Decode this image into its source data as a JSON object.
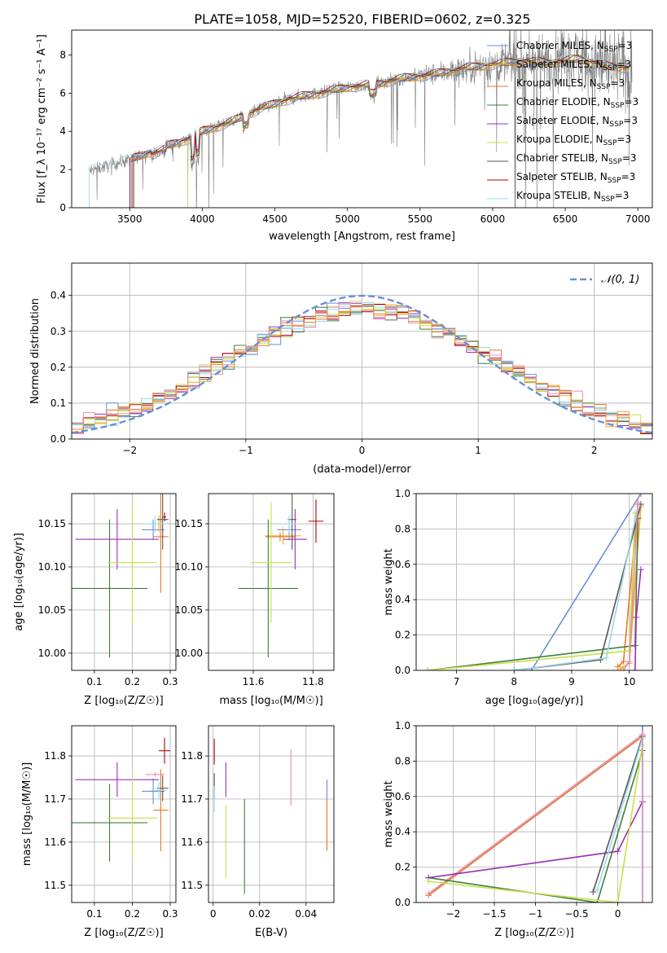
{
  "page_title": "PLATE=1058, MJD=52520, FIBERID=0602, z=0.325",
  "colors": {
    "chabrier_miles": "#6a8fd8",
    "salpeter_miles": "#f5a623",
    "kroupa_miles": "#e07b28",
    "chabrier_elodie": "#3f7f3f",
    "salpeter_elodie": "#9b2fb5",
    "kroupa_elodie": "#c8e04a",
    "chabrier_stelib": "#555555",
    "salpeter_stelib": "#b00000",
    "kroupa_stelib": "#9ad9e8",
    "pink": "#e58fb6",
    "data": "#7f7f7f",
    "gauss": "#6a8fd8"
  },
  "chart_data": [
    {
      "type": "line",
      "title": "PLATE=1058, MJD=52520, FIBERID=0602, z=0.325",
      "xlabel": "wavelength [Angstrom, rest frame]",
      "ylabel": "Flux [f_λ 10⁻¹⁷ erg cm⁻² s⁻¹ A⁻¹]",
      "xlim": [
        3100,
        7100
      ],
      "ylim": [
        0,
        9.3
      ],
      "xticks": [
        3500,
        4000,
        4500,
        5000,
        5500,
        6000,
        6500,
        7000
      ],
      "yticks": [
        0,
        2,
        4,
        6,
        8
      ],
      "grid": false,
      "legend_position": "upper right",
      "legend": [
        "Chabrier MILES, N_SSP=3",
        "Salpeter MILES, N_SSP=3",
        "Kroupa MILES, N_SSP=3",
        "Chabrier ELODIE, N_SSP=3",
        "Salpeter ELODIE, N_SSP=3",
        "Kroupa ELODIE, N_SSP=3",
        "Chabrier STELIB, N_SSP=3",
        "Salpeter STELIB, N_SSP=3",
        "Kroupa STELIB, N_SSP=3"
      ],
      "spectrum_anchor_points": {
        "x": [
          3220,
          3300,
          3500,
          3700,
          3900,
          4000,
          4200,
          4400,
          4600,
          4800,
          5000,
          5200,
          5400,
          5600,
          5800,
          6000,
          6200,
          6400,
          6600,
          6800,
          6950
        ],
        "y": [
          1.9,
          2.1,
          2.5,
          3.1,
          3.6,
          4.0,
          4.5,
          5.2,
          5.7,
          6.0,
          6.3,
          6.5,
          6.8,
          7.0,
          7.3,
          7.5,
          7.7,
          7.6,
          7.8,
          7.4,
          7.3
        ]
      }
    },
    {
      "type": "line",
      "xlabel": "(data-model)/error",
      "ylabel": "Normed distribution",
      "xlim": [
        -2.5,
        2.5
      ],
      "ylim": [
        0,
        0.49
      ],
      "xticks": [
        -2,
        -1,
        0,
        1,
        2
      ],
      "yticks": [
        0.0,
        0.1,
        0.2,
        0.3,
        0.4
      ],
      "grid": true,
      "legend_position": "upper right",
      "legend": [
        "𝒩(0, 1)"
      ],
      "gaussian": {
        "mean": 0,
        "sigma": 1
      }
    },
    {
      "type": "scatter",
      "xlabel": "Z [log₁₀(Z/Z☉)]",
      "ylabel": "age  [log₁₀(age/yr)]",
      "xlim": [
        0.04,
        0.315
      ],
      "ylim": [
        9.98,
        10.185
      ],
      "xticks": [
        0.1,
        0.2,
        0.3
      ],
      "yticks": [
        10.0,
        10.05,
        10.1,
        10.15
      ],
      "grid": true,
      "points": [
        {
          "series": "chabrier_miles",
          "x": 0.255,
          "y": 10.143,
          "xerr": 0.03,
          "yerr": 0.012
        },
        {
          "series": "salpeter_miles",
          "x": 0.27,
          "y": 10.15,
          "xerr": 0.015,
          "yerr": 0.01
        },
        {
          "series": "kroupa_miles",
          "x": 0.275,
          "y": 10.135,
          "xerr": 0.02,
          "yerr": 0.065
        },
        {
          "series": "chabrier_elodie",
          "x": 0.14,
          "y": 10.075,
          "xerr": 0.1,
          "yerr": 0.08
        },
        {
          "series": "salpeter_elodie",
          "x": 0.16,
          "y": 10.132,
          "xerr": 0.11,
          "yerr": 0.035
        },
        {
          "series": "kroupa_elodie",
          "x": 0.2,
          "y": 10.105,
          "xerr": 0.065,
          "yerr": 0.07
        },
        {
          "series": "chabrier_stelib",
          "x": 0.28,
          "y": 10.155,
          "xerr": 0.015,
          "yerr": 0.035
        },
        {
          "series": "salpeter_stelib",
          "x": 0.285,
          "y": 10.158,
          "xerr": 0.004,
          "yerr": 0.005
        },
        {
          "series": "kroupa_stelib",
          "x": 0.26,
          "y": 10.15,
          "xerr": 0.03,
          "yerr": 0.01
        }
      ]
    },
    {
      "type": "scatter",
      "xlabel": "mass [log₁₀(M/M☉)]",
      "ylabel": "",
      "xlim": [
        11.45,
        11.87
      ],
      "ylim": [
        9.98,
        10.185
      ],
      "xticks": [
        11.6,
        11.8
      ],
      "yticks": [
        10.0,
        10.05,
        10.1,
        10.15
      ],
      "grid": true,
      "points": [
        {
          "series": "chabrier_miles",
          "x": 11.72,
          "y": 10.143,
          "xerr": 0.04,
          "yerr": 0.012
        },
        {
          "series": "salpeter_miles",
          "x": 11.7,
          "y": 10.136,
          "xerr": 0.06,
          "yerr": 0.01
        },
        {
          "series": "kroupa_miles",
          "x": 11.69,
          "y": 10.135,
          "xerr": 0.05,
          "yerr": 0.005
        },
        {
          "series": "chabrier_elodie",
          "x": 11.65,
          "y": 10.075,
          "xerr": 0.1,
          "yerr": 0.08
        },
        {
          "series": "salpeter_elodie",
          "x": 11.74,
          "y": 10.132,
          "xerr": 0.04,
          "yerr": 0.035
        },
        {
          "series": "kroupa_elodie",
          "x": 11.66,
          "y": 10.105,
          "xerr": 0.07,
          "yerr": 0.07
        },
        {
          "series": "chabrier_stelib",
          "x": 11.73,
          "y": 10.155,
          "xerr": 0.015,
          "yerr": 0.035
        },
        {
          "series": "salpeter_stelib",
          "x": 11.81,
          "y": 10.153,
          "xerr": 0.025,
          "yerr": 0.025
        },
        {
          "series": "kroupa_stelib",
          "x": 11.72,
          "y": 10.15,
          "xerr": 0.03,
          "yerr": 0.01
        }
      ]
    },
    {
      "type": "line",
      "xlabel": "age  [log₁₀(age/yr)]",
      "ylabel": "mass weight",
      "xlim": [
        6.3,
        10.4
      ],
      "ylim": [
        0,
        1.0
      ],
      "xticks": [
        7,
        8,
        9,
        10
      ],
      "yticks": [
        0.0,
        0.2,
        0.4,
        0.6,
        0.8,
        1.0
      ],
      "grid": true,
      "series": [
        {
          "color": "chabrier_miles",
          "x": [
            8.3,
            10.2
          ],
          "y": [
            0.0,
            1.0
          ]
        },
        {
          "color": "kroupa_miles",
          "x": [
            9.8,
            9.9,
            10.15
          ],
          "y": [
            0.02,
            0.05,
            0.94
          ]
        },
        {
          "color": "salpeter_miles",
          "x": [
            9.85,
            10.0,
            10.2
          ],
          "y": [
            0.01,
            0.04,
            0.93
          ]
        },
        {
          "color": "chabrier_elodie",
          "x": [
            6.5,
            10.1,
            10.15
          ],
          "y": [
            0.0,
            0.14,
            0.86
          ]
        },
        {
          "color": "salpeter_elodie",
          "x": [
            10.1,
            10.12,
            10.2
          ],
          "y": [
            0.0,
            0.3,
            0.57
          ]
        },
        {
          "color": "kroupa_elodie",
          "x": [
            6.5,
            10.0,
            10.1
          ],
          "y": [
            0.0,
            0.11,
            0.89
          ]
        },
        {
          "color": "chabrier_stelib",
          "x": [
            8.0,
            9.5,
            10.2
          ],
          "y": [
            0.0,
            0.06,
            0.94
          ]
        },
        {
          "color": "kroupa_stelib",
          "x": [
            8.0,
            9.6,
            10.15
          ],
          "y": [
            0.0,
            0.07,
            0.93
          ]
        },
        {
          "color": "pink",
          "x": [
            9.9,
            10.0,
            10.15
          ],
          "y": [
            0.0,
            0.05,
            0.95
          ]
        }
      ]
    },
    {
      "type": "scatter",
      "xlabel": "Z [log₁₀(Z/Z☉)]",
      "ylabel": "mass [log₁₀(M/M☉)]",
      "xlim": [
        0.04,
        0.315
      ],
      "ylim": [
        11.46,
        11.87
      ],
      "xticks": [
        0.1,
        0.2,
        0.3
      ],
      "yticks": [
        11.5,
        11.6,
        11.7,
        11.8
      ],
      "grid": true,
      "points": [
        {
          "series": "chabrier_miles",
          "x": 0.255,
          "y": 11.718,
          "xerr": 0.03,
          "yerr": 0.03
        },
        {
          "series": "pink",
          "x": 0.26,
          "y": 11.757,
          "xerr": 0.025,
          "yerr": 0.005
        },
        {
          "series": "kroupa_miles",
          "x": 0.275,
          "y": 11.674,
          "xerr": 0.02,
          "yerr": 0.095
        },
        {
          "series": "chabrier_elodie",
          "x": 0.14,
          "y": 11.645,
          "xerr": 0.1,
          "yerr": 0.09
        },
        {
          "series": "salpeter_elodie",
          "x": 0.16,
          "y": 11.745,
          "xerr": 0.11,
          "yerr": 0.04
        },
        {
          "series": "kroupa_elodie",
          "x": 0.2,
          "y": 11.656,
          "xerr": 0.065,
          "yerr": 0.1
        },
        {
          "series": "chabrier_stelib",
          "x": 0.28,
          "y": 11.725,
          "xerr": 0.015,
          "yerr": 0.03
        },
        {
          "series": "salpeter_stelib",
          "x": 0.285,
          "y": 11.812,
          "xerr": 0.015,
          "yerr": 0.03
        },
        {
          "series": "kroupa_stelib",
          "x": 0.27,
          "y": 11.72,
          "xerr": 0.02,
          "yerr": 0.02
        }
      ]
    },
    {
      "type": "scatter",
      "xlabel": "E(B-V)",
      "ylabel": "",
      "xlim": [
        -0.002,
        0.052
      ],
      "ylim": [
        11.46,
        11.87
      ],
      "xticks": [
        0.0,
        0.02,
        0.04
      ],
      "yticks": [
        11.5,
        11.6,
        11.7,
        11.8
      ],
      "grid": true,
      "points": [
        {
          "series": "chabrier_miles",
          "x": 0.049,
          "y": 11.72,
          "yerr": 0.025
        },
        {
          "series": "kroupa_miles",
          "x": 0.049,
          "y": 11.64,
          "yerr": 0.06
        },
        {
          "series": "pink",
          "x": 0.0335,
          "y": 11.75,
          "yerr": 0.065
        },
        {
          "series": "chabrier_elodie",
          "x": 0.0135,
          "y": 11.59,
          "yerr": 0.11
        },
        {
          "series": "salpeter_elodie",
          "x": 0.0055,
          "y": 11.745,
          "yerr": 0.04
        },
        {
          "series": "kroupa_elodie",
          "x": 0.0055,
          "y": 11.6,
          "yerr": 0.085
        },
        {
          "series": "chabrier_stelib",
          "x": 0.0005,
          "y": 11.73,
          "yerr": 0.03
        },
        {
          "series": "salpeter_stelib",
          "x": 0.0005,
          "y": 11.81,
          "yerr": 0.03
        },
        {
          "series": "kroupa_stelib",
          "x": 0.0005,
          "y": 11.7,
          "yerr": 0.03
        }
      ]
    },
    {
      "type": "line",
      "xlabel": "Z [log₁₀(Z/Z☉)]",
      "ylabel": "mass weight",
      "xlim": [
        -2.45,
        0.42
      ],
      "ylim": [
        0,
        1.0
      ],
      "xticks": [
        -2.0,
        -1.5,
        -1.0,
        -0.5,
        0.0
      ],
      "yticks": [
        0.0,
        0.2,
        0.4,
        0.6,
        0.8,
        1.0
      ],
      "grid": true,
      "series": [
        {
          "color": "chabrier_miles",
          "x": [
            0.3,
            0.3
          ],
          "y": [
            0.0,
            1.0
          ]
        },
        {
          "color": "kroupa_miles",
          "x": [
            -2.3,
            0.3
          ],
          "y": [
            0.04,
            0.94
          ]
        },
        {
          "color": "pink",
          "x": [
            -2.3,
            0.3
          ],
          "y": [
            0.05,
            0.95
          ]
        },
        {
          "color": "chabrier_elodie",
          "x": [
            -2.3,
            -0.25,
            0.3
          ],
          "y": [
            0.14,
            0.0,
            0.86
          ]
        },
        {
          "color": "salpeter_elodie",
          "x": [
            -2.3,
            0.0,
            0.3
          ],
          "y": [
            0.14,
            0.29,
            0.57
          ]
        },
        {
          "color": "kroupa_elodie",
          "x": [
            -2.3,
            0.0,
            0.3
          ],
          "y": [
            0.12,
            0.0,
            0.89
          ]
        },
        {
          "color": "chabrier_stelib",
          "x": [
            -0.3,
            0.3
          ],
          "y": [
            0.06,
            0.94
          ]
        },
        {
          "color": "kroupa_stelib",
          "x": [
            -0.25,
            0.3
          ],
          "y": [
            0.07,
            0.93
          ]
        },
        {
          "color": "pink",
          "x": [
            0.3,
            0.3
          ],
          "y": [
            0.0,
            0.95
          ]
        }
      ]
    }
  ]
}
